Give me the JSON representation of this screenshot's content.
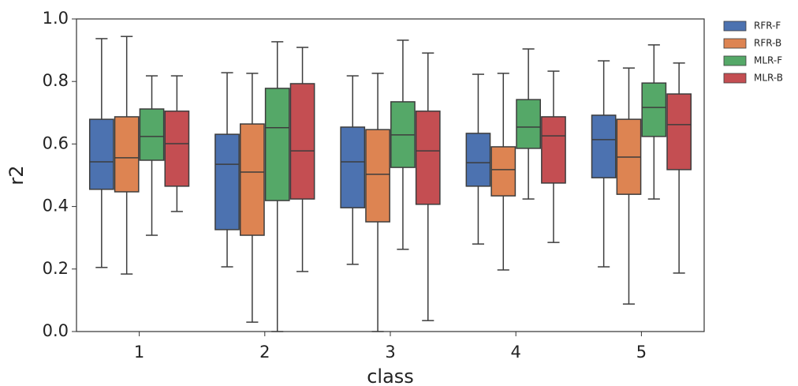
{
  "chart_data": {
    "type": "box",
    "x_label": "class",
    "y_label": "r2",
    "categories": [
      "1",
      "2",
      "3",
      "4",
      "5"
    ],
    "ylim": [
      0,
      1
    ],
    "yticks": [
      {
        "value": 0,
        "label": "0.0"
      },
      0.2,
      0.4,
      0.6,
      0.8,
      {
        "value": 1,
        "label": "1.0"
      }
    ],
    "legend": "outside-right-top",
    "series": [
      {
        "name": "RFR-F",
        "color": "#4c72b0",
        "values": [
          {
            "whislo": 0.205,
            "q1": 0.455,
            "median": 0.543,
            "q3": 0.679,
            "whishi": 0.937
          },
          {
            "whislo": 0.207,
            "q1": 0.326,
            "median": 0.535,
            "q3": 0.631,
            "whishi": 0.828
          },
          {
            "whislo": 0.215,
            "q1": 0.396,
            "median": 0.543,
            "q3": 0.654,
            "whishi": 0.818
          },
          {
            "whislo": 0.28,
            "q1": 0.465,
            "median": 0.54,
            "q3": 0.634,
            "whishi": 0.823
          },
          {
            "whislo": 0.207,
            "q1": 0.492,
            "median": 0.614,
            "q3": 0.692,
            "whishi": 0.866
          }
        ]
      },
      {
        "name": "RFR-B",
        "color": "#dd8452",
        "values": [
          {
            "whislo": 0.184,
            "q1": 0.447,
            "median": 0.556,
            "q3": 0.687,
            "whishi": 0.944
          },
          {
            "whislo": 0.03,
            "q1": 0.308,
            "median": 0.51,
            "q3": 0.664,
            "whishi": 0.826
          },
          {
            "whislo": 0,
            "q1": 0.351,
            "median": 0.503,
            "q3": 0.646,
            "whishi": 0.826
          },
          {
            "whislo": 0.197,
            "q1": 0.434,
            "median": 0.518,
            "q3": 0.591,
            "whishi": 0.826
          },
          {
            "whislo": 0.088,
            "q1": 0.439,
            "median": 0.558,
            "q3": 0.679,
            "whishi": 0.843
          }
        ]
      },
      {
        "name": "MLR-F",
        "color": "#55a868",
        "values": [
          {
            "whislo": 0.308,
            "q1": 0.548,
            "median": 0.624,
            "q3": 0.712,
            "whishi": 0.818
          },
          {
            "whislo": 0,
            "q1": 0.419,
            "median": 0.652,
            "q3": 0.778,
            "whishi": 0.927
          },
          {
            "whislo": 0.263,
            "q1": 0.525,
            "median": 0.629,
            "q3": 0.735,
            "whishi": 0.932
          },
          {
            "whislo": 0.424,
            "q1": 0.586,
            "median": 0.654,
            "q3": 0.742,
            "whishi": 0.904
          },
          {
            "whislo": 0.424,
            "q1": 0.624,
            "median": 0.717,
            "q3": 0.795,
            "whishi": 0.917
          }
        ]
      },
      {
        "name": "MLR-B",
        "color": "#c44e52",
        "values": [
          {
            "whislo": 0.384,
            "q1": 0.465,
            "median": 0.601,
            "q3": 0.705,
            "whishi": 0.818
          },
          {
            "whislo": 0.192,
            "q1": 0.424,
            "median": 0.578,
            "q3": 0.793,
            "whishi": 0.909
          },
          {
            "whislo": 0.035,
            "q1": 0.407,
            "median": 0.578,
            "q3": 0.705,
            "whishi": 0.891
          },
          {
            "whislo": 0.285,
            "q1": 0.475,
            "median": 0.626,
            "q3": 0.687,
            "whishi": 0.833
          },
          {
            "whislo": 0.187,
            "q1": 0.518,
            "median": 0.662,
            "q3": 0.76,
            "whishi": 0.859
          }
        ]
      }
    ]
  }
}
